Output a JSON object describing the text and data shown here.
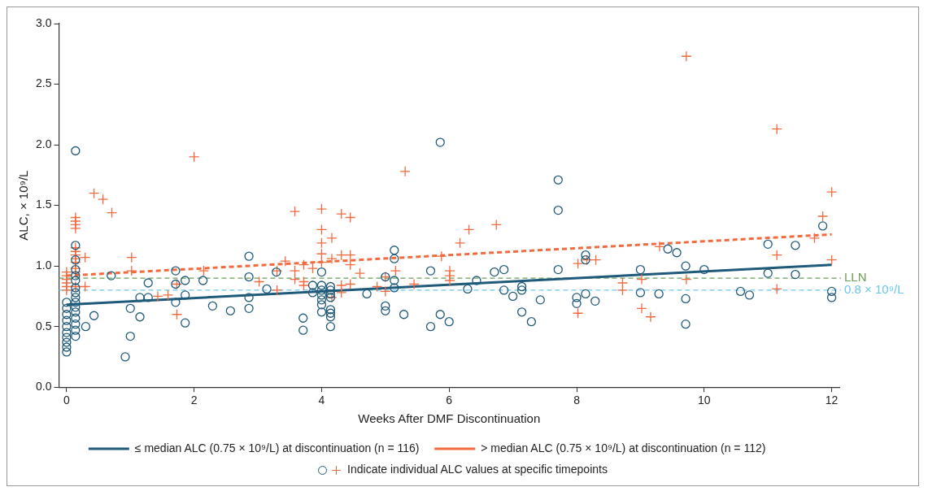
{
  "chart_data": {
    "type": "scatter",
    "xlabel": "Weeks After DMF Discontinuation",
    "ylabel": "ALC, × 10⁹/L",
    "xlim": [
      -0.12,
      12.12
    ],
    "xticks": [
      0,
      2,
      4,
      6,
      8,
      10,
      12
    ],
    "ylim": [
      0,
      3
    ],
    "yticks": [
      {
        "value": 0,
        "label": "0.0"
      },
      {
        "value": 0.5,
        "label": "0.5"
      },
      {
        "value": 1,
        "label": "1.0"
      },
      {
        "value": 1.5,
        "label": "1.5"
      },
      {
        "value": 2,
        "label": "2.0"
      },
      {
        "value": 2.5,
        "label": "2.5"
      },
      {
        "value": 3,
        "label": "3.0"
      }
    ],
    "grid": false,
    "legend": "bottom",
    "ref_lines": [
      {
        "axis": "y",
        "value": 0.9,
        "label": "LLN",
        "color": "#6a9f58",
        "line_style": "dashed"
      },
      {
        "axis": "y",
        "value": 0.8,
        "label": "0.8 × 10⁹/L",
        "color": "#6cc5ec",
        "line_style": "dashed"
      }
    ],
    "annotations": [
      "Indicate individual ALC values at specific timepoints"
    ],
    "series": [
      {
        "type": "scatter",
        "color": "#1f5a7a",
        "marker": "circle",
        "x": [
          0,
          0,
          0,
          0,
          0,
          0,
          0,
          0,
          0,
          0,
          0.14,
          0.14,
          0.14,
          0.14,
          0.14,
          0.14,
          0.14,
          0.14,
          0.14,
          0.14,
          0.14,
          0.14,
          0.14,
          0.14,
          0.14,
          0.14,
          0.3,
          0.43,
          0.7,
          0.92,
          1.0,
          1.0,
          1.15,
          1.15,
          1.28,
          1.28,
          1.71,
          1.71,
          1.71,
          1.86,
          1.86,
          1.86,
          2.14,
          2.29,
          2.57,
          2.86,
          2.86,
          2.86,
          2.86,
          3.14,
          3.29,
          3.71,
          3.71,
          3.86,
          3.86,
          4.0,
          4.0,
          4.0,
          4.0,
          4.0,
          4.0,
          4.0,
          4.14,
          4.14,
          4.14,
          4.14,
          4.14,
          4.14,
          4.14,
          4.14,
          4.71,
          5.0,
          5.0,
          5.0,
          5.14,
          5.14,
          5.14,
          5.14,
          5.29,
          5.71,
          5.71,
          5.86,
          5.86,
          6.0,
          6.29,
          6.43,
          6.71,
          6.86,
          6.86,
          7.0,
          7.14,
          7.14,
          7.14,
          7.29,
          7.43,
          7.71,
          7.71,
          7.71,
          8.0,
          8.0,
          8.14,
          8.14,
          8.14,
          8.29,
          9.0,
          9.0,
          9.29,
          9.43,
          9.57,
          9.71,
          9.71,
          9.71,
          10.0,
          10.57,
          10.71,
          11.0,
          11.0,
          11.43,
          11.43,
          11.86,
          12.0,
          12.0
        ],
        "values": [
          0.29,
          0.33,
          0.37,
          0.41,
          0.45,
          0.5,
          0.55,
          0.6,
          0.65,
          0.7,
          0.42,
          0.47,
          0.52,
          0.57,
          0.62,
          0.66,
          0.7,
          0.74,
          0.78,
          0.82,
          0.88,
          0.92,
          0.97,
          1.05,
          1.17,
          1.95,
          0.5,
          0.59,
          0.92,
          0.25,
          0.42,
          0.65,
          0.58,
          0.74,
          0.86,
          0.74,
          0.96,
          0.85,
          0.7,
          0.53,
          0.76,
          0.88,
          0.88,
          0.67,
          0.63,
          1.08,
          0.91,
          0.74,
          0.65,
          0.81,
          0.95,
          0.57,
          0.47,
          0.84,
          0.78,
          0.95,
          0.84,
          0.8,
          0.76,
          0.72,
          0.68,
          0.62,
          0.83,
          0.8,
          0.77,
          0.74,
          0.64,
          0.61,
          0.58,
          0.5,
          0.77,
          0.91,
          0.67,
          0.63,
          1.13,
          1.06,
          0.88,
          0.82,
          0.6,
          0.96,
          0.5,
          2.02,
          0.6,
          0.54,
          0.81,
          0.88,
          0.95,
          0.97,
          0.8,
          0.75,
          0.83,
          0.8,
          0.62,
          0.54,
          0.72,
          1.71,
          1.46,
          0.97,
          0.74,
          0.69,
          1.09,
          1.05,
          0.77,
          0.71,
          0.97,
          0.78,
          0.77,
          1.14,
          1.11,
          1.0,
          0.73,
          0.52,
          0.97,
          0.79,
          0.76,
          1.18,
          0.94,
          1.17,
          0.93,
          1.33,
          0.79,
          0.74
        ]
      },
      {
        "type": "scatter",
        "color": "#f26a3d",
        "marker": "cross",
        "x": [
          0,
          0,
          0,
          0,
          0,
          0,
          0.14,
          0.14,
          0.14,
          0.14,
          0.14,
          0.14,
          0.14,
          0.14,
          0.14,
          0.14,
          0.14,
          0.14,
          0.29,
          0.29,
          0.43,
          0.57,
          0.71,
          1.02,
          1.02,
          1.43,
          1.59,
          1.73,
          1.73,
          2.0,
          2.15,
          3.02,
          3.3,
          3.3,
          3.43,
          3.58,
          3.58,
          3.58,
          3.72,
          3.72,
          3.72,
          3.86,
          4.0,
          4.0,
          4.0,
          4.0,
          4.0,
          4.16,
          4.16,
          4.16,
          4.31,
          4.31,
          4.31,
          4.31,
          4.45,
          4.45,
          4.45,
          4.45,
          4.6,
          4.87,
          5.0,
          5.0,
          5.16,
          5.31,
          5.45,
          5.88,
          6.01,
          6.01,
          6.01,
          6.17,
          6.31,
          6.74,
          8.02,
          8.02,
          8.16,
          8.3,
          8.72,
          8.72,
          9.02,
          9.02,
          9.16,
          9.3,
          9.72,
          9.72,
          11.14,
          11.14,
          11.14,
          11.73,
          11.86,
          12.0,
          12.0
        ],
        "values": [
          0.8,
          0.83,
          0.86,
          0.89,
          0.92,
          0.95,
          1.4,
          1.37,
          1.34,
          1.31,
          1.15,
          1.12,
          1.09,
          1.06,
          1.03,
          0.98,
          0.95,
          0.83,
          1.07,
          0.83,
          1.6,
          1.55,
          1.44,
          1.07,
          0.96,
          0.75,
          0.76,
          0.85,
          0.6,
          1.9,
          0.96,
          0.87,
          0.96,
          0.8,
          1.04,
          1.45,
          0.96,
          0.89,
          1.01,
          0.87,
          0.84,
          0.98,
          1.47,
          1.3,
          1.19,
          1.1,
          1.03,
          1.23,
          1.06,
          0.74,
          1.43,
          1.09,
          0.84,
          0.78,
          1.4,
          1.09,
          1.01,
          0.85,
          0.94,
          0.83,
          0.91,
          0.79,
          0.96,
          1.78,
          0.85,
          1.08,
          0.96,
          0.92,
          0.88,
          1.19,
          1.3,
          1.34,
          1.02,
          0.61,
          1.05,
          1.05,
          0.86,
          0.8,
          0.89,
          0.65,
          0.58,
          1.16,
          2.73,
          0.89,
          2.13,
          1.09,
          0.81,
          1.23,
          1.41,
          1.61,
          1.05
        ]
      },
      {
        "type": "line",
        "name": "≤ median ALC (0.75 × 10⁹/L) at discontinuation (n = 116)",
        "color": "#1f5a7a",
        "line_style": "solid",
        "x": [
          0,
          12
        ],
        "values": [
          0.68,
          1.01
        ]
      },
      {
        "type": "line",
        "name": "> median ALC (0.75 × 10⁹/L) at discontinuation (n = 112)",
        "color": "#f26a3d",
        "line_style": "dashed",
        "x": [
          0,
          12
        ],
        "values": [
          0.92,
          1.26
        ]
      }
    ]
  }
}
